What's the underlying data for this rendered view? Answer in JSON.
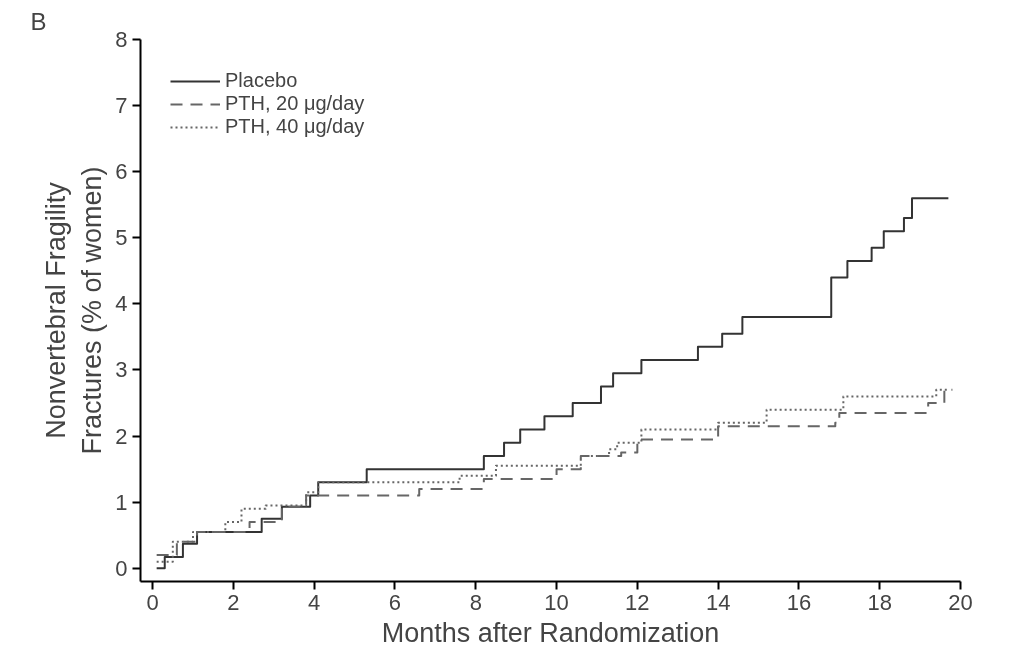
{
  "chart_data": {
    "type": "step",
    "xlabel": "Months after Randomization",
    "ylabel": "Nonvertebral Fragility\nFractures (% of women)",
    "annotations": [
      "B"
    ],
    "xlim": [
      -0.3,
      20
    ],
    "ylim": [
      -0.2,
      8
    ],
    "xticks": [
      0,
      2,
      4,
      6,
      8,
      10,
      12,
      14,
      16,
      18,
      20
    ],
    "yticks": [
      0,
      1,
      2,
      3,
      4,
      5,
      6,
      7,
      8
    ],
    "grid": false,
    "legend": "top left",
    "series": [
      {
        "name": "Placebo",
        "color": "#333333",
        "line_style": "solid",
        "x": [
          0.1,
          0.3,
          0.75,
          1.1,
          2.7,
          3.2,
          3.9,
          4.1,
          5.3,
          8.2,
          8.7,
          9.1,
          9.7,
          10.4,
          11.1,
          11.4,
          12.1,
          13.5,
          14.1,
          14.6,
          16.8,
          17.2,
          17.8,
          18.1,
          18.6,
          18.8,
          19.7
        ],
        "values": [
          0,
          0.17,
          0.37,
          0.55,
          0.75,
          0.93,
          1.1,
          1.3,
          1.5,
          1.7,
          1.9,
          2.1,
          2.3,
          2.5,
          2.75,
          2.95,
          3.15,
          3.35,
          3.55,
          3.8,
          4.4,
          4.65,
          4.85,
          5.1,
          5.3,
          5.6,
          5.6
        ]
      },
      {
        "name": "PTH, 20 μg/day",
        "color": "#666666",
        "line_style": "dashed",
        "x": [
          0.1,
          0.6,
          1.1,
          2.4,
          3.2,
          3.8,
          6.6,
          8.2,
          10.0,
          10.6,
          11.6,
          12.0,
          14.0,
          16.9,
          17.0,
          19.2,
          19.6,
          19.8
        ],
        "values": [
          0.2,
          0.4,
          0.55,
          0.7,
          0.93,
          1.1,
          1.2,
          1.35,
          1.5,
          1.7,
          1.75,
          1.95,
          2.15,
          2.2,
          2.35,
          2.5,
          2.7,
          2.7
        ]
      },
      {
        "name": "PTH, 40 μg/day",
        "color": "#666666",
        "line_style": "dotted",
        "x": [
          0.1,
          0.5,
          1.0,
          1.8,
          2.2,
          2.8,
          3.8,
          4.1,
          7.6,
          8.5,
          10.6,
          11.3,
          11.5,
          12.1,
          14.0,
          15.2,
          17.1,
          19.4,
          19.7
        ],
        "values": [
          0.1,
          0.4,
          0.55,
          0.7,
          0.9,
          0.95,
          1.15,
          1.3,
          1.4,
          1.55,
          1.7,
          1.8,
          1.9,
          2.1,
          2.2,
          2.4,
          2.6,
          2.7,
          2.7
        ]
      }
    ]
  }
}
